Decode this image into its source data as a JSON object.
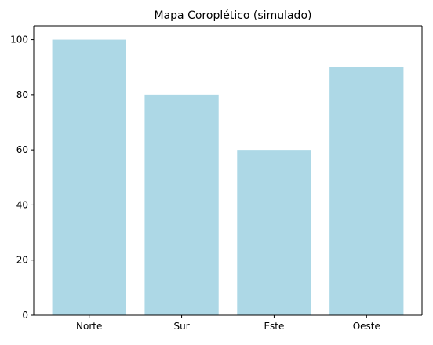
{
  "chart_data": {
    "type": "bar",
    "title": "Mapa Coroplético (simulado)",
    "xlabel": "",
    "ylabel": "",
    "categories": [
      "Norte",
      "Sur",
      "Este",
      "Oeste"
    ],
    "values": [
      100,
      80,
      60,
      90
    ],
    "ylim": [
      0,
      105
    ],
    "yticks": [
      0,
      20,
      40,
      60,
      80,
      100
    ],
    "grid": false,
    "bar_color": "#add8e6",
    "axis_color": "#000000"
  }
}
